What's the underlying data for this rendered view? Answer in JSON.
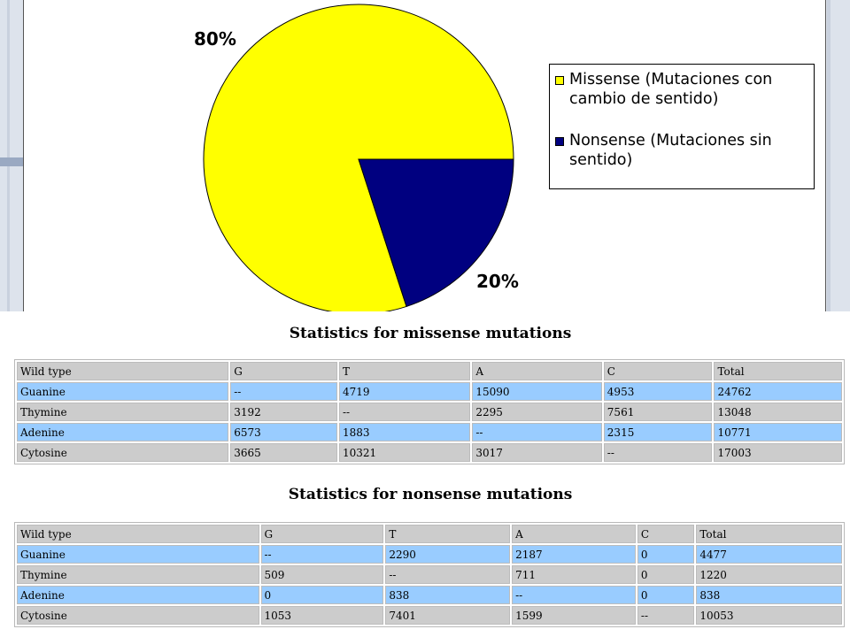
{
  "chart_data": {
    "type": "pie",
    "slices": [
      {
        "label": "Missense (Mutaciones con cambio de sentido)",
        "value": 80,
        "color": "#ffff00"
      },
      {
        "label": "Nonsense (Mutaciones sin sentido)",
        "value": 20,
        "color": "#000080"
      }
    ],
    "data_labels": [
      "80%",
      "20%"
    ],
    "legend": {
      "placement": "right",
      "items": [
        {
          "label": "Missense (Mutaciones con cambio de sentido)",
          "color": "#ffff00"
        },
        {
          "label": "Nonsense (Mutaciones sin sentido)",
          "color": "#000080"
        }
      ]
    }
  },
  "missense": {
    "title": "Statistics for missense mutations",
    "header": [
      "Wild type",
      "G",
      "T",
      "A",
      "C",
      "Total"
    ],
    "rows": [
      [
        "Guanine",
        "--",
        "4719",
        "15090",
        "4953",
        "24762"
      ],
      [
        "Thymine",
        "3192",
        "--",
        "2295",
        "7561",
        "13048"
      ],
      [
        "Adenine",
        "6573",
        "1883",
        "--",
        "2315",
        "10771"
      ],
      [
        "Cytosine",
        "3665",
        "10321",
        "3017",
        "--",
        "17003"
      ]
    ]
  },
  "nonsense": {
    "title": "Statistics for nonsense mutations",
    "header": [
      "Wild type",
      "G",
      "T",
      "A",
      "C",
      "Total"
    ],
    "rows": [
      [
        "Guanine",
        "--",
        "2290",
        "2187",
        "0",
        "4477"
      ],
      [
        "Thymine",
        "509",
        "--",
        "711",
        "0",
        "1220"
      ],
      [
        "Adenine",
        "0",
        "838",
        "--",
        "0",
        "838"
      ],
      [
        "Cytosine",
        "1053",
        "7401",
        "1599",
        "--",
        "10053"
      ]
    ]
  }
}
